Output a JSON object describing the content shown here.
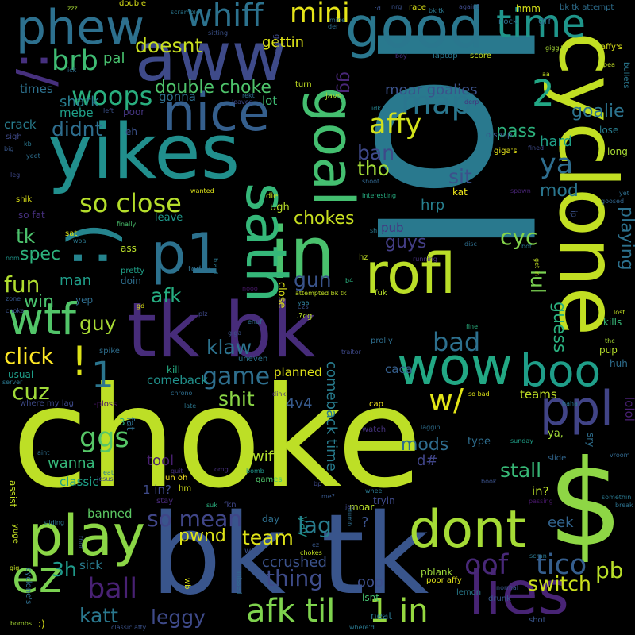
{
  "words": [
    {
      "text": "choke",
      "color": "#bddf26"
    },
    {
      "text": "lol",
      "color": "#29798e"
    },
    {
      "text": "bk tk",
      "color": "#39558c"
    },
    {
      "text": "$",
      "color": "#8ed645"
    },
    {
      "text": "yikes",
      "color": "#218f8d"
    },
    {
      "text": "aww",
      "color": "#3e4a89"
    },
    {
      "text": "tk bk",
      "color": "#472c7a"
    },
    {
      "text": "cyclone",
      "color": "#c2df23"
    },
    {
      "text": "good",
      "color": "#2a778e"
    },
    {
      "text": "play",
      "color": "#8bd646"
    },
    {
      "text": "p1",
      "color": "#2c718e"
    },
    {
      "text": "in",
      "color": "#4ac16d"
    },
    {
      "text": "rofl",
      "color": "#bade28"
    },
    {
      "text": "sath",
      "color": "#35b779"
    },
    {
      "text": "goal",
      "color": "#44bf70"
    },
    {
      "text": "wow",
      "color": "#22a884"
    },
    {
      "text": "boo",
      "color": "#1f9e89"
    },
    {
      "text": "dont",
      "color": "#a5db36"
    },
    {
      "text": "lies",
      "color": "#482475"
    },
    {
      "text": "ppl",
      "color": "#414487"
    },
    {
      "text": "nice",
      "color": "#355f8d"
    },
    {
      "text": "phew",
      "color": "#2d708e"
    },
    {
      "text": "time",
      "color": "#1f968b"
    },
    {
      "text": "wtf",
      "color": "#52c569"
    },
    {
      "text": "ez",
      "color": "#7ad151"
    },
    {
      "text": "(:",
      "color": "#25848e"
    },
    {
      "text": ":/",
      "color": "#46307e"
    },
    {
      "text": "!",
      "color": "#dde318"
    },
    {
      "text": "1",
      "color": "#2b758e"
    },
    {
      "text": "oof",
      "color": "#482878"
    },
    {
      "text": "tico",
      "color": "#355e8d"
    },
    {
      "text": "afk til",
      "color": "#7fd34e"
    },
    {
      "text": "1 in",
      "color": "#95d840"
    },
    {
      "text": "whiff",
      "color": "#2c728e"
    },
    {
      "text": "mini",
      "color": "#e5e419"
    },
    {
      "text": "brb",
      "color": "#3fbc73"
    },
    {
      "text": "woops",
      "color": "#29af7f"
    },
    {
      "text": "map",
      "color": "#2a768e"
    },
    {
      "text": "affy",
      "color": "#d2e21b"
    },
    {
      "text": "2",
      "color": "#22a785"
    },
    {
      "text": "ya",
      "color": "#2e6d8e"
    },
    {
      "text": "so close",
      "color": "#b5de2b"
    },
    {
      "text": "double choke",
      "color": "#4ec36b"
    },
    {
      "text": "doesnt",
      "color": "#c8e020"
    },
    {
      "text": "didnt",
      "color": "#2e6e8e"
    },
    {
      "text": "gg",
      "color": "#482677"
    },
    {
      "text": "goalie",
      "color": "#2c738e"
    },
    {
      "text": "moar goalies",
      "color": "#3b528b"
    },
    {
      "text": "pass",
      "color": "#2db27d"
    },
    {
      "text": "hard",
      "color": "#1fa088"
    },
    {
      "text": "ban",
      "color": "#3e4989"
    },
    {
      "text": "tho",
      "color": "#a2da37"
    },
    {
      "text": "sit",
      "color": "#3b528b"
    },
    {
      "text": "mod",
      "color": "#2a768e"
    },
    {
      "text": "cyc",
      "color": "#84d44b"
    },
    {
      "text": "chokes",
      "color": "#c8e020"
    },
    {
      "text": "tk",
      "color": "#4cc26c"
    },
    {
      "text": "spec",
      "color": "#2db27d"
    },
    {
      "text": "fun",
      "color": "#b0dd2f"
    },
    {
      "text": "win",
      "color": "#4ac16d"
    },
    {
      "text": "man",
      "color": "#1f9e89"
    },
    {
      "text": "afk",
      "color": "#26ad81"
    },
    {
      "text": "gun",
      "color": "#3a548c"
    },
    {
      "text": "guy",
      "color": "#a8db34"
    },
    {
      "text": "bad",
      "color": "#2d708e"
    },
    {
      "text": "click",
      "color": "#fde725"
    },
    {
      "text": "klaw",
      "color": "#2c728e"
    },
    {
      "text": "game",
      "color": "#2e6f8e"
    },
    {
      "text": "cuz",
      "color": "#a0da39"
    },
    {
      "text": "shit",
      "color": "#8bd646"
    },
    {
      "text": "w/",
      "color": "#e2e418"
    },
    {
      "text": "guys",
      "color": "#433e85"
    },
    {
      "text": "lul",
      "color": "#7ad151"
    },
    {
      "text": "guess",
      "color": "#2ab07f"
    },
    {
      "text": "playing",
      "color": "#2c718e"
    },
    {
      "text": "ggs",
      "color": "#56c667"
    },
    {
      "text": "team",
      "color": "#dfe318"
    },
    {
      "text": "so mean",
      "color": "#404688"
    },
    {
      "text": "lag",
      "color": "#287d8e"
    },
    {
      "text": "pwnd",
      "color": "#dde318"
    },
    {
      "text": "ball",
      "color": "#482173"
    },
    {
      "text": "katt",
      "color": "#2a788e"
    },
    {
      "text": "leggy",
      "color": "#3e4a89"
    },
    {
      "text": "thing",
      "color": "#3e4c8a"
    },
    {
      "text": "ccrushed",
      "color": "#3b528b"
    },
    {
      "text": "switch",
      "color": "#cde11d"
    },
    {
      "text": "pb",
      "color": "#b8de29"
    },
    {
      "text": "3h",
      "color": "#1f9a8a"
    },
    {
      "text": "mods",
      "color": "#2f6c8e"
    },
    {
      "text": "wifi",
      "color": "#b2dd2d"
    },
    {
      "text": "stall",
      "color": "#38b977"
    },
    {
      "text": "4v4",
      "color": "#375a8c"
    },
    {
      "text": "d#",
      "color": "#404588"
    },
    {
      "text": "comeback time",
      "color": "#287c8e"
    },
    {
      "text": "hrp",
      "color": "#277f8e"
    },
    {
      "text": "pub",
      "color": "#453781"
    },
    {
      "text": "eek",
      "color": "#32648e"
    },
    {
      "text": "yay",
      "color": "#20928c"
    },
    {
      "text": "ooo",
      "color": "#3d4e8a"
    },
    {
      "text": "tool",
      "color": "#481f70"
    },
    {
      "text": "banned",
      "color": "#5cc863"
    },
    {
      "text": "classic",
      "color": "#1fa088"
    },
    {
      "text": "wanna",
      "color": "#35b779"
    },
    {
      "text": "sick",
      "color": "#297a8e"
    },
    {
      "text": "shark",
      "color": "#287c8e"
    },
    {
      "text": "mebe",
      "color": "#1fa088"
    },
    {
      "text": "crack",
      "color": "#287d8e"
    },
    {
      "text": "times",
      "color": "#2d718e"
    },
    {
      "text": "pal",
      "color": "#48c16e"
    },
    {
      "text": "gettin",
      "color": "#dde318"
    },
    {
      "text": "gonna",
      "color": "#2e6e8e"
    },
    {
      "text": "lot",
      "color": "#3fbc73"
    },
    {
      "text": "planned",
      "color": "#dfe318"
    },
    {
      "text": "comeback",
      "color": "#21918c"
    },
    {
      "text": "usual",
      "color": "#1f9e89"
    },
    {
      "text": "kill",
      "color": "#25ab82"
    },
    {
      "text": "yep",
      "color": "#2e6d8e"
    },
    {
      "text": "teams",
      "color": "#c0df25"
    },
    {
      "text": "lolol",
      "color": "#482071"
    },
    {
      "text": "caca",
      "color": "#355f8d"
    },
    {
      "text": "ugh",
      "color": "#b8de29"
    },
    {
      "text": "leave",
      "color": "#1f988b"
    },
    {
      "text": "kat",
      "color": "#ece51b"
    },
    {
      "text": "hmm",
      "color": "#d8e219"
    },
    {
      "text": "grr",
      "color": "#2e6f8e"
    },
    {
      "text": "long",
      "color": "#a8db34"
    },
    {
      "text": "lose",
      "color": "#287d8e"
    },
    {
      "text": "kills",
      "color": "#37b878"
    },
    {
      "text": "pup",
      "color": "#b5de2b"
    },
    {
      "text": "huh",
      "color": "#2e6e8e"
    },
    {
      "text": "cap",
      "color": "#f4e61e"
    },
    {
      "text": "watch",
      "color": "#46337e"
    },
    {
      "text": "mb",
      "color": "#c5e021"
    },
    {
      "text": "type",
      "color": "#2e6d8e"
    },
    {
      "text": "slide",
      "color": "#31668e"
    },
    {
      "text": "moar",
      "color": "#b8de29"
    },
    {
      "text": "tryin",
      "color": "#3e4989"
    },
    {
      "text": "pblank",
      "color": "#9dd93b"
    },
    {
      "text": "poor affy",
      "color": "#e2e418"
    },
    {
      "text": "isnt",
      "color": "#46c06f"
    },
    {
      "text": "neat",
      "color": "#2a768e"
    },
    {
      "text": "shot",
      "color": "#39568c"
    },
    {
      "text": "drunk",
      "color": "#38588c"
    },
    {
      "text": "lemon",
      "color": "#287c8e"
    },
    {
      "text": "fat",
      "color": "#2e6e8e"
    },
    {
      "text": "3",
      "color": "#2ab07f"
    },
    {
      "text": "where my lag",
      "color": "#3e4a89"
    },
    {
      "text": "-ploss",
      "color": "#481467"
    },
    {
      "text": "late",
      "color": "#2a778e"
    },
    {
      "text": "chrono",
      "color": "#2e6e8e"
    },
    {
      "text": "dink",
      "color": "#472d7b"
    },
    {
      "text": "uneven",
      "color": "#2c728e"
    },
    {
      "text": "games",
      "color": "#50c46a"
    },
    {
      "text": "stay",
      "color": "#482979"
    },
    {
      "text": "day",
      "color": "#2e6f8e"
    },
    {
      "text": "wait",
      "color": "#3b528b"
    },
    {
      "text": "eat",
      "color": "#287d8e"
    },
    {
      "text": "jesus",
      "color": "#3e4a89"
    },
    {
      "text": "bomb",
      "color": "#1f968b"
    },
    {
      "text": "quit",
      "color": "#46307e"
    },
    {
      "text": "uh oh",
      "color": "#fde725"
    },
    {
      "text": "hm",
      "color": "#d5e21a"
    },
    {
      "text": "fkn",
      "color": "#3f4788"
    },
    {
      "text": "suk",
      "color": "#2ab07f"
    },
    {
      "text": "1 in?",
      "color": "#3e4a89"
    },
    {
      "text": "in?",
      "color": "#bade28"
    },
    {
      "text": "?",
      "color": "#3b528b"
    },
    {
      "text": "ya,",
      "color": "#a2da37"
    },
    {
      "text": "sry",
      "color": "#2e6e8e"
    },
    {
      "text": "vroom",
      "color": "#31688e"
    },
    {
      "text": "somethin",
      "color": "#2a778e"
    },
    {
      "text": "break",
      "color": "#2c718e"
    },
    {
      "text": "passing",
      "color": "#48186a"
    },
    {
      "text": "book",
      "color": "#3b528b"
    },
    {
      "text": "sunday",
      "color": "#1fa088"
    },
    {
      "text": "spawn",
      "color": "#482475"
    },
    {
      "text": "fined",
      "color": "#3e4a89"
    },
    {
      "text": "giga's",
      "color": "#e5e419"
    },
    {
      "text": "o snap",
      "color": "#38588c"
    },
    {
      "text": "derp",
      "color": "#46327e"
    },
    {
      "text": "idk",
      "color": "#26828e"
    },
    {
      "text": "turn",
      "color": "#c2df23"
    },
    {
      "text": "javs",
      "color": "#a8db34"
    },
    {
      "text": "rekt",
      "color": "#2e6e8e"
    },
    {
      "text": "leaves",
      "color": "#3e4989"
    },
    {
      "text": "poor",
      "color": "#453581"
    },
    {
      "text": "left",
      "color": "#3b528b"
    },
    {
      "text": "eh",
      "color": "#3b528b"
    },
    {
      "text": "die",
      "color": "#c2df23"
    },
    {
      "text": "wanted",
      "color": "#dde318"
    },
    {
      "text": "interesting",
      "color": "#26ad81"
    },
    {
      "text": "shoot",
      "color": "#31668e"
    },
    {
      "text": "finally",
      "color": "#4ac16d"
    },
    {
      "text": "ass",
      "color": "#b8de29"
    },
    {
      "text": "pretty",
      "color": "#1fa088"
    },
    {
      "text": "doin",
      "color": "#2e6e8e"
    },
    {
      "text": "today",
      "color": "#2e6f8e"
    },
    {
      "text": "nooo",
      "color": "#48186a"
    },
    {
      "text": "close",
      "color": "#dde318"
    },
    {
      "text": "c2s",
      "color": "#3b528b"
    },
    {
      "text": ".?cg",
      "color": "#b8de29"
    },
    {
      "text": "fuk",
      "color": "#b5de2b"
    },
    {
      "text": "hz",
      "color": "#c2df23"
    },
    {
      "text": "disc",
      "color": "#2e6e8e"
    },
    {
      "text": "shrug",
      "color": "#2a778e"
    },
    {
      "text": "running",
      "color": "#46307e"
    },
    {
      "text": "bot",
      "color": "#2a778e"
    },
    {
      "text": "b4",
      "color": "#2ab07f"
    },
    {
      "text": "attempted bk tk",
      "color": "#c0df25"
    },
    {
      "text": "prolly",
      "color": "#2e6e8e"
    },
    {
      "text": "traitor",
      "color": "#3e4989"
    },
    {
      "text": "fine",
      "color": "#2ab07f"
    },
    {
      "text": "lost",
      "color": "#c2df23"
    },
    {
      "text": "thc",
      "color": "#a8db34"
    },
    {
      "text": "so bad",
      "color": "#dde318"
    },
    {
      "text": "laggin",
      "color": "#2e6e8e"
    },
    {
      "text": "spike",
      "color": "#2e6e8e"
    },
    {
      "text": "zone",
      "color": "#38588c"
    },
    {
      "text": "choke",
      "color": "#3b528b"
    },
    {
      "text": "nom",
      "color": "#1f968b"
    },
    {
      "text": "woa",
      "color": "#2a778e"
    },
    {
      "text": "sat",
      "color": "#dde318"
    },
    {
      "text": "so fat",
      "color": "#46307e"
    },
    {
      "text": "shik",
      "color": "#dde318"
    },
    {
      "text": "leg",
      "color": "#3e4989"
    },
    {
      "text": "yet",
      "color": "#2e6e8e"
    },
    {
      "text": "big",
      "color": "#38588c"
    },
    {
      "text": "kb",
      "color": "#2a778e"
    },
    {
      "text": "sigh",
      "color": "#3e4989"
    },
    {
      "text": "yeet",
      "color": "#2e6e8e"
    },
    {
      "text": "goosed",
      "color": "#31668e"
    },
    {
      "text": "pea",
      "color": "#c2df23"
    },
    {
      "text": "bullets",
      "color": "#2a778e"
    },
    {
      "text": "affy's",
      "color": "#dde318"
    },
    {
      "text": "giggity",
      "color": "#a8db34"
    },
    {
      "text": "nock",
      "color": "#2e6e8e"
    },
    {
      "text": "race",
      "color": "#dde318"
    },
    {
      "text": "nrg",
      "color": "#3b528b"
    },
    {
      "text": "score",
      "color": "#c2df23"
    },
    {
      "text": "laptop",
      "color": "#2a778e"
    },
    {
      "text": "boy",
      "color": "#46307e"
    },
    {
      "text": "again?",
      "color": "#3e4989"
    },
    {
      "text": "bk tk attempt",
      "color": "#2e6e8e"
    },
    {
      "text": "double",
      "color": "#dde318"
    },
    {
      "text": "zzz",
      "color": "#a8db34"
    },
    {
      "text": "scramble",
      "color": "#2a778e"
    },
    {
      "text": "sitting",
      "color": "#3b528b"
    },
    {
      "text": "goalies",
      "color": "#3e4989"
    },
    {
      "text": "mine",
      "color": "#2e6e8e"
    },
    {
      "text": "ick",
      "color": "#2e6e8e"
    },
    {
      "text": "yuge",
      "color": "#c2df23"
    },
    {
      "text": "assist",
      "color": "#c2df23"
    },
    {
      "text": "sliding",
      "color": "#2a778e"
    },
    {
      "text": "thot",
      "color": "#38588c"
    },
    {
      "text": "cyclone's",
      "color": "#2e6e8e"
    },
    {
      "text": "bombs",
      "color": "#a8db34"
    },
    {
      "text": ":)",
      "color": "#dde318"
    },
    {
      "text": "classic affy",
      "color": "#3b528b"
    },
    {
      "text": "where'd",
      "color": "#2a778e"
    },
    {
      "text": "normal",
      "color": "#38588c"
    },
    {
      "text": "aint",
      "color": "#2e6e8e"
    },
    {
      "text": "server",
      "color": "#2a778e"
    },
    {
      "text": "chokes",
      "color": "#c2df23"
    },
    {
      "text": "missed",
      "color": "#2e6e8e"
    },
    {
      "text": "wb",
      "color": "#dde318"
    },
    {
      "text": "b a d",
      "color": "#2a778e"
    },
    {
      "text": "plz",
      "color": "#3e4989"
    },
    {
      "text": "gd",
      "color": "#dde318"
    },
    {
      "text": "enuf",
      "color": "#2e6e8e"
    },
    {
      "text": "giga",
      "color": "#3b528b"
    },
    {
      "text": "get in",
      "color": "#c2df23"
    },
    {
      "text": "dumb",
      "color": "#2e6e8e"
    },
    {
      "text": "me?",
      "color": "#38588c"
    },
    {
      "text": "jav",
      "color": "#3e4989"
    },
    {
      "text": "whee",
      "color": "#2a778e"
    },
    {
      "text": "omg",
      "color": "#46307e"
    },
    {
      "text": "scran",
      "color": "#2a778e"
    },
    {
      "text": "ip",
      "color": "#3b528b"
    },
    {
      "text": "haha",
      "color": "#2a778e"
    },
    {
      "text": "aa",
      "color": "#c2df23"
    },
    {
      "text": ":d",
      "color": "#3b528b"
    },
    {
      "text": "der",
      "color": "#2e6e8e"
    },
    {
      "text": "yaa",
      "color": "#2a778e"
    },
    {
      "text": "gig",
      "color": "#c2df23"
    },
    {
      "text": "ez",
      "color": "#38588c"
    },
    {
      "text": "bp",
      "color": "#3e4989"
    },
    {
      "text": "bk tk",
      "color": "#2a778e"
    }
  ]
}
